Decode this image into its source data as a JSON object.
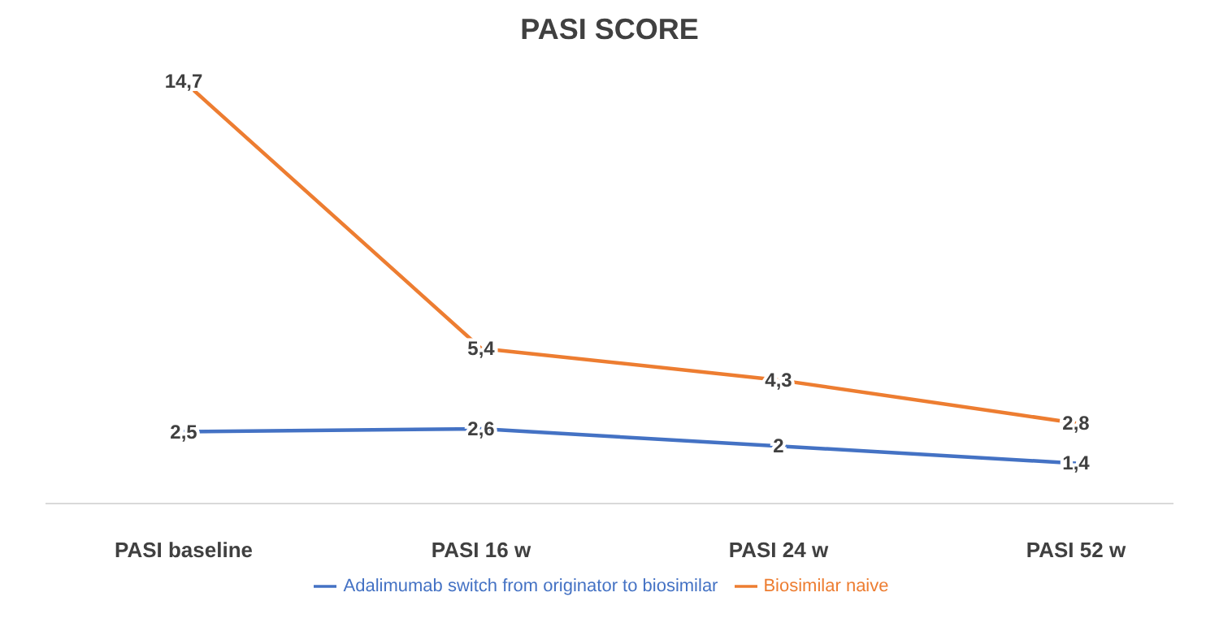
{
  "chart_data": {
    "type": "line",
    "title": "PASI SCORE",
    "categories": [
      "PASI baseline",
      "PASI 16 w",
      "PASI 24 w",
      "PASI 52 w"
    ],
    "series": [
      {
        "name": "Adalimumab switch from originator to biosimilar",
        "color": "#4472c4",
        "values": [
          2.5,
          2.6,
          2,
          1.4
        ],
        "value_labels": [
          "2,5",
          "2,6",
          "2",
          "1,4"
        ]
      },
      {
        "name": "Biosimilar naive",
        "color": "#ed7d31",
        "values": [
          14.7,
          5.4,
          4.3,
          2.8
        ],
        "value_labels": [
          "14,7",
          "5,4",
          "4,3",
          "2,8"
        ]
      }
    ],
    "grid": false,
    "legend": "bottom"
  }
}
